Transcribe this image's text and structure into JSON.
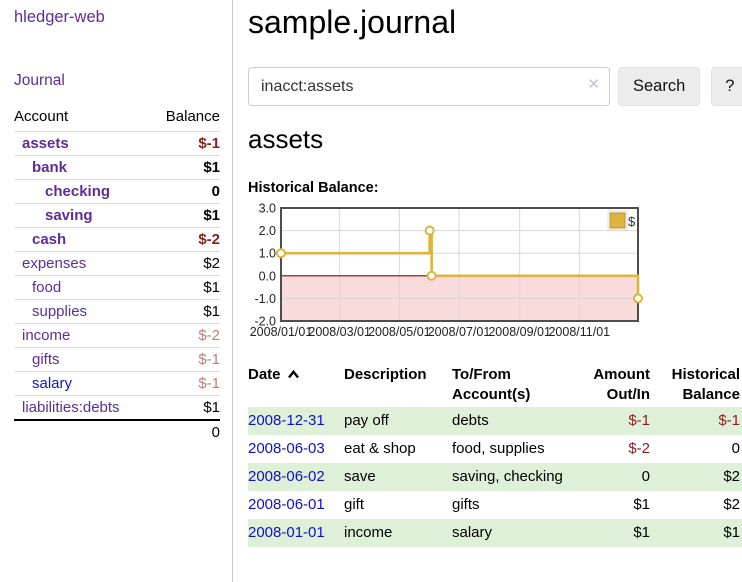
{
  "sidebar": {
    "app_title": "hledger-web",
    "journal_label": "Journal",
    "accounts_table": {
      "headers": {
        "account": "Account",
        "balance": "Balance"
      },
      "rows": [
        {
          "name": "assets",
          "balance": "$-1",
          "indent": 0,
          "bold": true,
          "tone": "neg"
        },
        {
          "name": "bank",
          "balance": "$1",
          "indent": 1,
          "bold": true,
          "tone": null
        },
        {
          "name": "checking",
          "balance": "0",
          "indent": 2,
          "bold": true,
          "tone": null
        },
        {
          "name": "saving",
          "balance": "$1",
          "indent": 2,
          "bold": true,
          "tone": null
        },
        {
          "name": "cash",
          "balance": "$-2",
          "indent": 1,
          "bold": true,
          "tone": "neg"
        },
        {
          "name": "expenses",
          "balance": "$2",
          "indent": 0,
          "bold": false,
          "tone": null
        },
        {
          "name": "food",
          "balance": "$1",
          "indent": 1,
          "bold": false,
          "tone": null
        },
        {
          "name": "supplies",
          "balance": "$1",
          "indent": 1,
          "bold": false,
          "tone": null
        },
        {
          "name": "income",
          "balance": "$-2",
          "indent": 0,
          "bold": false,
          "tone": "muted"
        },
        {
          "name": "gifts",
          "balance": "$-1",
          "indent": 1,
          "bold": false,
          "tone": "muted"
        },
        {
          "name": "salary",
          "balance": "$-1",
          "indent": 1,
          "bold": false,
          "tone": "muted",
          "link": "blue"
        },
        {
          "name": "liabilities:debts",
          "balance": "$1",
          "indent": 0,
          "bold": false,
          "tone": null
        }
      ],
      "total": "0"
    }
  },
  "main": {
    "title": "sample.journal",
    "search": {
      "value": "inacct:assets",
      "clear_glyph": "✕",
      "button_label": "Search",
      "help_label": "?"
    },
    "account_heading": "assets",
    "chart_label": "Historical Balance:"
  },
  "chart_data": {
    "type": "line",
    "step": true,
    "title": "Historical Balance",
    "legend_label": "$",
    "legend_position": "top-right",
    "x_start": "2008-01-01",
    "x_end": "2008-12-31",
    "points": [
      {
        "date": "2008-01-01",
        "value": 1
      },
      {
        "date": "2008-06-01",
        "value": 2
      },
      {
        "date": "2008-06-03",
        "value": 0
      },
      {
        "date": "2008-12-31",
        "value": -1
      }
    ],
    "ylim": [
      -2,
      3
    ],
    "yticks": [
      "3.0",
      "2.0",
      "1.0",
      "0.0",
      "-1.0",
      "-2.0"
    ],
    "xticks": [
      {
        "date": "2008-01-01",
        "label": "2008/01/01"
      },
      {
        "date": "2008-03-01",
        "label": "2008/03/01"
      },
      {
        "date": "2008-05-01",
        "label": "2008/05/01"
      },
      {
        "date": "2008-07-01",
        "label": "2008/07/01"
      },
      {
        "date": "2008-09-01",
        "label": "2008/09/01"
      },
      {
        "date": "2008-11-01",
        "label": "2008/11/01"
      }
    ],
    "grid": true,
    "colors": {
      "line": "#ddb43f",
      "marker_fill": "#ffffff",
      "zero_line": "#7a0c0c",
      "negative_fill": "#fadbdb",
      "grid": "#d8d8d8",
      "border": "#4d4d4d",
      "tick_text": "#222222"
    }
  },
  "register_table": {
    "headers": {
      "date": "Date",
      "description": "Description",
      "accounts": "To/From Account(s)",
      "amount": "Amount Out/In",
      "balance": "Historical Balance"
    },
    "rows": [
      {
        "date": "2008-12-31",
        "description": "pay off",
        "accounts": "debts",
        "amount": "$-1",
        "amount_negative": true,
        "balance": "$-1",
        "balance_negative": true
      },
      {
        "date": "2008-06-03",
        "description": "eat & shop",
        "accounts": "food, supplies",
        "amount": "$-2",
        "amount_negative": true,
        "balance": "0",
        "balance_negative": false
      },
      {
        "date": "2008-06-02",
        "description": "save",
        "accounts": "saving, checking",
        "amount": "0",
        "amount_negative": false,
        "balance": "$2",
        "balance_negative": false
      },
      {
        "date": "2008-06-01",
        "description": "gift",
        "accounts": "gifts",
        "amount": "$1",
        "amount_negative": false,
        "balance": "$2",
        "balance_negative": false
      },
      {
        "date": "2008-01-01",
        "description": "income",
        "accounts": "salary",
        "amount": "$1",
        "amount_negative": false,
        "balance": "$1",
        "balance_negative": false
      }
    ]
  }
}
